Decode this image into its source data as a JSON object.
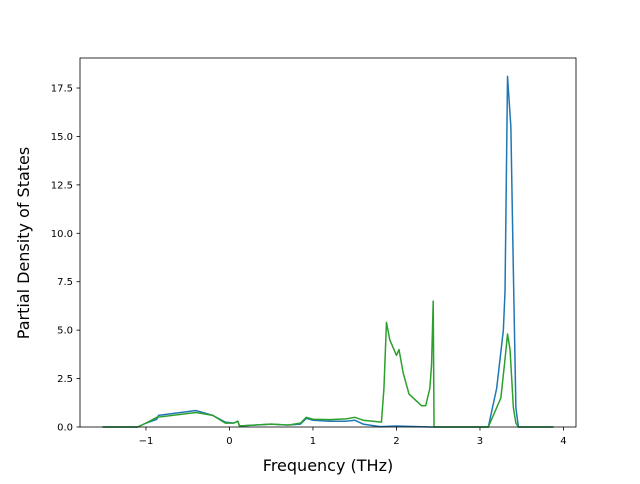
{
  "chart_data": {
    "type": "line",
    "xlabel": "Frequency (THz)",
    "ylabel": "Partial Density of States",
    "xlim": [
      -1.79,
      4.15
    ],
    "ylim": [
      0,
      19.05
    ],
    "xticks": [
      {
        "value": -1,
        "label": "−1"
      },
      0,
      1,
      2,
      3,
      4
    ],
    "yticks": [
      {
        "value": 0,
        "label": "0.0"
      },
      {
        "value": 2.5,
        "label": "2.5"
      },
      {
        "value": 5,
        "label": "5.0"
      },
      {
        "value": 7.5,
        "label": "7.5"
      },
      {
        "value": 10,
        "label": "10.0"
      },
      {
        "value": 12.5,
        "label": "12.5"
      },
      {
        "value": 15,
        "label": "15.0"
      },
      {
        "value": 17.5,
        "label": "17.5"
      }
    ],
    "series": [
      {
        "color": "#1f77b4",
        "x": [
          -1.52,
          -1.1,
          -1.0,
          -0.87,
          -0.85,
          -0.4,
          -0.2,
          -0.05,
          0.05,
          0.1,
          0.12,
          0.3,
          0.5,
          0.7,
          0.85,
          0.92,
          1.0,
          1.2,
          1.4,
          1.5,
          1.6,
          1.8,
          2.0,
          2.4,
          3.1,
          3.2,
          3.28,
          3.3,
          3.33,
          3.37,
          3.4,
          3.43,
          3.46,
          3.88
        ],
        "values": [
          0,
          0,
          0.2,
          0.4,
          0.6,
          0.85,
          0.6,
          0.25,
          0.2,
          0.3,
          0.05,
          0.1,
          0.15,
          0.1,
          0.15,
          0.45,
          0.35,
          0.3,
          0.3,
          0.35,
          0.15,
          0.02,
          0.05,
          0,
          0,
          2.0,
          5.0,
          7.0,
          18.1,
          15.5,
          8.0,
          1.0,
          0,
          0
        ]
      },
      {
        "color": "#2ca02c",
        "x": [
          -1.52,
          -1.1,
          -1.0,
          -0.87,
          -0.4,
          -0.2,
          -0.05,
          0.05,
          0.1,
          0.12,
          0.3,
          0.5,
          0.7,
          0.85,
          0.92,
          1.0,
          1.2,
          1.4,
          1.5,
          1.6,
          1.82,
          1.85,
          1.88,
          1.92,
          2.0,
          2.03,
          2.08,
          2.15,
          2.2,
          2.3,
          2.35,
          2.4,
          2.42,
          2.44,
          2.45,
          3.1,
          3.25,
          3.3,
          3.33,
          3.36,
          3.4,
          3.43,
          3.46,
          3.88
        ],
        "values": [
          0,
          0,
          0.2,
          0.5,
          0.75,
          0.6,
          0.2,
          0.2,
          0.3,
          0.05,
          0.1,
          0.15,
          0.1,
          0.2,
          0.5,
          0.4,
          0.38,
          0.42,
          0.5,
          0.35,
          0.25,
          2.0,
          5.4,
          4.5,
          3.7,
          4.0,
          2.8,
          1.7,
          1.5,
          1.1,
          1.1,
          2.0,
          3.2,
          6.5,
          0,
          0,
          1.5,
          3.5,
          4.8,
          4.0,
          1.0,
          0.2,
          0,
          0
        ]
      }
    ]
  }
}
